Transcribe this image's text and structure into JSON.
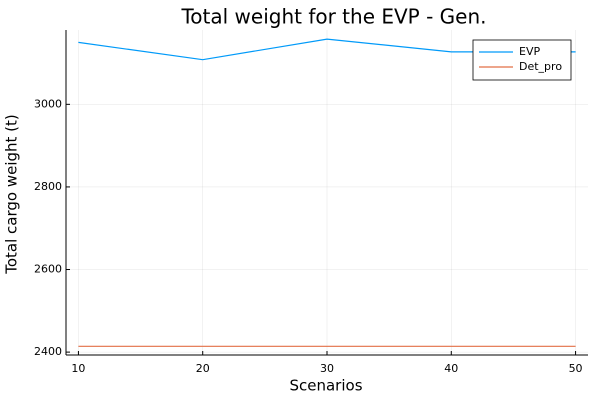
{
  "chart_data": {
    "type": "line",
    "title": "Total weight for the EVP - Gen.",
    "xlabel": "Scenarios",
    "ylabel": "Total cargo weight (t)",
    "x": [
      10,
      20,
      30,
      40,
      50
    ],
    "xlim": [
      9,
      51
    ],
    "ylim": [
      2393,
      3180
    ],
    "xticks": [
      10,
      20,
      30,
      40,
      50
    ],
    "yticks": [
      2400,
      2600,
      2800,
      3000
    ],
    "grid": true,
    "legend_position": "top-right",
    "series": [
      {
        "name": "EVP",
        "color": "#009af9",
        "values": [
          3150,
          3108,
          3158,
          3127,
          3127
        ]
      },
      {
        "name": "Det_pro",
        "color": "#e26f46",
        "values": [
          2414,
          2414,
          2414,
          2414,
          2414
        ]
      }
    ]
  }
}
